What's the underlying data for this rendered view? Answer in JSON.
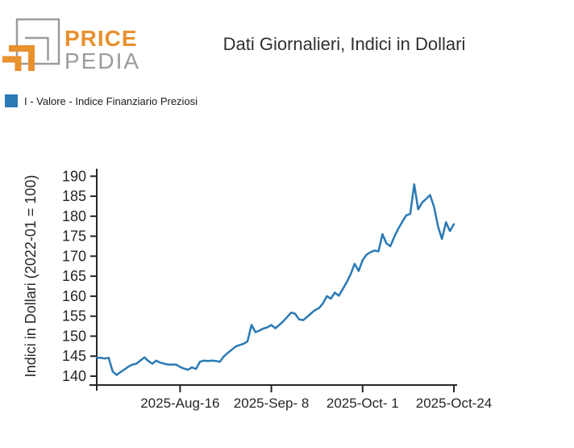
{
  "header": {
    "logo": {
      "price": "PRICE",
      "pedia": "PEDIA",
      "orange_color": "#e8912f",
      "gray_color": "#9b9b9b"
    },
    "title": "Dati Giornalieri, Indici in Dollari"
  },
  "legend": {
    "label": "I - Valore - Indice Finanziario Preziosi",
    "color": "#2979b5"
  },
  "chart_data": {
    "type": "line",
    "title": "Dati Giornalieri, Indici in Dollari",
    "xlabel": "",
    "ylabel": "Indici in Dollari (2022-01 = 100)",
    "ylim": [
      140,
      190
    ],
    "y_ticks": [
      140,
      145,
      150,
      155,
      160,
      165,
      170,
      175,
      180,
      185,
      190
    ],
    "x_tick_labels": [
      "2025-Aug-16",
      "2025-Sep- 8",
      "2025-Oct- 1",
      "2025-Oct-24"
    ],
    "x_tick_indices": [
      21,
      44,
      67,
      90
    ],
    "grid": false,
    "legend_position": "top-left",
    "series": [
      {
        "name": "I - Valore - Indice Finanziario Preziosi",
        "color": "#2979b5",
        "values": [
          144.6,
          144.6,
          144.4,
          144.6,
          141.2,
          140.3,
          141.0,
          141.7,
          142.4,
          142.9,
          143.1,
          143.9,
          144.7,
          143.8,
          143.1,
          143.9,
          143.4,
          143.1,
          142.9,
          142.9,
          142.9,
          142.3,
          141.9,
          141.6,
          142.2,
          141.8,
          143.6,
          143.9,
          143.8,
          143.9,
          143.8,
          143.6,
          144.9,
          145.8,
          146.6,
          147.4,
          147.8,
          148.1,
          148.7,
          152.8,
          151.0,
          151.4,
          151.9,
          152.2,
          152.8,
          152.0,
          152.8,
          153.7,
          154.8,
          155.9,
          155.6,
          154.2,
          154.0,
          154.8,
          155.7,
          156.5,
          157.0,
          158.2,
          160.0,
          159.4,
          160.9,
          160.1,
          161.8,
          163.5,
          165.5,
          168.1,
          166.3,
          169.0,
          170.4,
          171.0,
          171.4,
          171.2,
          175.5,
          173.2,
          172.5,
          174.9,
          176.9,
          178.6,
          180.2,
          180.6,
          188.0,
          181.7,
          183.4,
          184.3,
          185.3,
          182.3,
          177.5,
          174.3,
          178.5,
          176.3,
          178.0
        ]
      }
    ]
  }
}
